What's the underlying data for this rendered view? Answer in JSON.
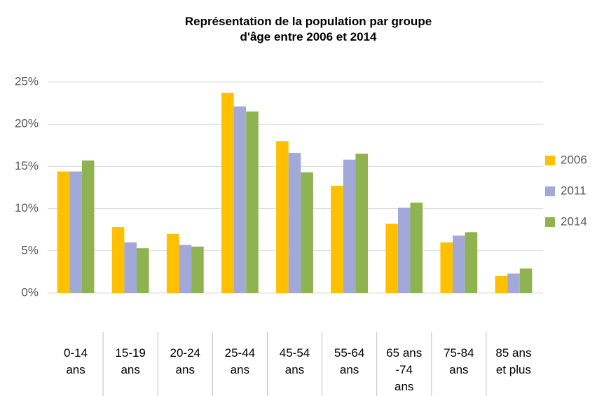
{
  "chart_data": {
    "type": "bar",
    "title": "Représentation de la population par groupe\nd'âge entre 2006 et 2014",
    "categories": [
      "0-14\nans",
      "15-19\nans",
      "20-24\nans",
      "25-44\nans",
      "45-54\nans",
      "55-64\nans",
      "65 ans\n-74\nans",
      "75-84\nans",
      "85 ans\net plus"
    ],
    "series": [
      {
        "name": "2006",
        "color": "#ffc000",
        "values": [
          14.4,
          7.8,
          7.0,
          23.7,
          18.0,
          12.7,
          8.2,
          6.0,
          2.0
        ]
      },
      {
        "name": "2011",
        "color": "#a2a9d9",
        "values": [
          14.4,
          6.0,
          5.7,
          22.1,
          16.6,
          15.8,
          10.1,
          6.8,
          2.3
        ]
      },
      {
        "name": "2014",
        "color": "#8fb350",
        "values": [
          15.7,
          5.3,
          5.5,
          21.5,
          14.3,
          16.5,
          10.7,
          7.2,
          2.9
        ]
      }
    ],
    "ylim": [
      0,
      25
    ],
    "yticks": [
      {
        "value": 0,
        "label": "0%"
      },
      {
        "value": 5,
        "label": "5%"
      },
      {
        "value": 10,
        "label": "10%"
      },
      {
        "value": 15,
        "label": "15%"
      },
      {
        "value": 20,
        "label": "20%"
      },
      {
        "value": 25,
        "label": "25%"
      }
    ],
    "grid": true,
    "legend": "right"
  }
}
